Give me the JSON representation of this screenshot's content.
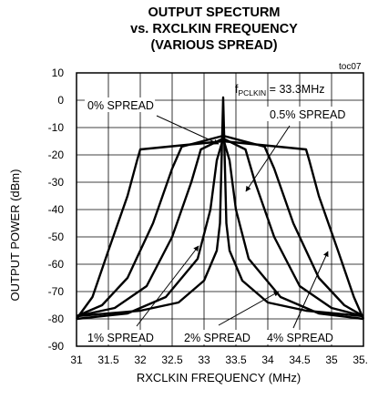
{
  "chart_data": {
    "type": "line",
    "title": [
      "OUTPUT SPECTURM",
      "vs. RXCLKIN FREQUENCY",
      "(VARIOUS SPREAD)"
    ],
    "xlabel": "RXCLKIN FREQUENCY (MHz)",
    "ylabel": "OUTPUT POWER (dBm)",
    "xlim": [
      31,
      35.5
    ],
    "ylim": [
      -90,
      10
    ],
    "xticks": [
      31,
      31.5,
      32,
      32.5,
      33,
      33.5,
      34,
      34.5,
      35,
      35.5
    ],
    "yticks": [
      10,
      0,
      -10,
      -20,
      -30,
      -40,
      -50,
      -60,
      -70,
      -80,
      -90
    ],
    "xtick_labels": [
      "31",
      "31.5",
      "32",
      "32.5",
      "33",
      "33.5",
      "34",
      "34.5",
      "35",
      "35.5"
    ],
    "ytick_labels": [
      "10",
      "0",
      "-10",
      "-20",
      "-30",
      "-40",
      "-50",
      "-60",
      "-70",
      "-80",
      "-90"
    ],
    "grid": true,
    "series": [
      {
        "name": "0% SPREAD",
        "x": [
          31.0,
          32.0,
          32.6,
          33.0,
          33.2,
          33.25,
          33.3,
          33.35,
          33.4,
          33.6,
          34.0,
          34.6,
          35.5
        ],
        "y": [
          -79,
          -77,
          -74,
          -66,
          -55,
          -45,
          1,
          -45,
          -55,
          -66,
          -74,
          -77,
          -79
        ]
      },
      {
        "name": "0.5% SPREAD",
        "x": [
          31.0,
          31.8,
          32.4,
          32.9,
          33.1,
          33.2,
          33.3,
          33.4,
          33.5,
          33.7,
          34.2,
          34.8,
          35.5
        ],
        "y": [
          -80,
          -78,
          -72,
          -58,
          -40,
          -22,
          -14,
          -22,
          -40,
          -58,
          -72,
          -78,
          -80
        ]
      },
      {
        "name": "1% SPREAD",
        "x": [
          31.0,
          31.6,
          32.1,
          32.5,
          32.8,
          32.95,
          33.3,
          33.65,
          33.8,
          34.1,
          34.5,
          35.0,
          35.5
        ],
        "y": [
          -79,
          -76,
          -68,
          -50,
          -30,
          -18,
          -14,
          -18,
          -30,
          -50,
          -68,
          -76,
          -79
        ]
      },
      {
        "name": "2% SPREAD",
        "x": [
          31.0,
          31.4,
          31.8,
          32.2,
          32.5,
          32.65,
          33.3,
          33.95,
          34.1,
          34.4,
          34.8,
          35.2,
          35.5
        ],
        "y": [
          -79,
          -75,
          -65,
          -45,
          -25,
          -17,
          -13,
          -17,
          -25,
          -45,
          -65,
          -75,
          -79
        ]
      },
      {
        "name": "4% SPREAD",
        "x": [
          31.0,
          31.25,
          31.5,
          31.8,
          31.95,
          32.0,
          33.3,
          34.6,
          34.65,
          34.8,
          35.1,
          35.35,
          35.5
        ],
        "y": [
          -80,
          -72,
          -55,
          -35,
          -22,
          -18,
          -15,
          -18,
          -22,
          -35,
          -55,
          -72,
          -80
        ]
      }
    ],
    "annotations": {
      "corner_tag": "toc07",
      "freq_label_prefix": "f",
      "freq_label_sub": "PCLKIN",
      "freq_label_value": " = 33.3MHz",
      "labels": [
        "0% SPREAD",
        "0.5% SPREAD",
        "1% SPREAD",
        "2% SPREAD",
        "4% SPREAD"
      ]
    }
  }
}
